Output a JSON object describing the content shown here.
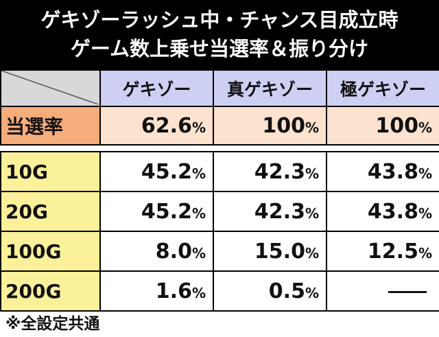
{
  "title": {
    "line1": "ゲキゾーラッシュ中・チャンス目成立時",
    "line2": "ゲーム数上乗せ当選率＆振り分け"
  },
  "table": {
    "columns": [
      "ゲキゾー",
      "真ゲキゾー",
      "極ゲキゾー"
    ],
    "rate_row": {
      "label": "当選率",
      "values": [
        "62.6",
        "100",
        "100"
      ],
      "unit": "%"
    },
    "rows": [
      {
        "label": "10G",
        "values": [
          "45.2",
          "42.3",
          "43.8"
        ]
      },
      {
        "label": "20G",
        "values": [
          "45.2",
          "42.3",
          "43.8"
        ]
      },
      {
        "label": "100G",
        "values": [
          "8.0",
          "15.0",
          "12.5"
        ]
      },
      {
        "label": "200G",
        "values": [
          "1.6",
          "0.5",
          "—"
        ]
      }
    ]
  },
  "footnote": "※全設定共通",
  "colors": {
    "header_bg": "#cdd0f2",
    "rate_label_bg": "#f6ad7c",
    "rate_value_bg": "#fbe3cf",
    "row_label_bg": "#fbf19a",
    "corner_bg": "#d8d8d8",
    "title_bg": "#000000"
  }
}
